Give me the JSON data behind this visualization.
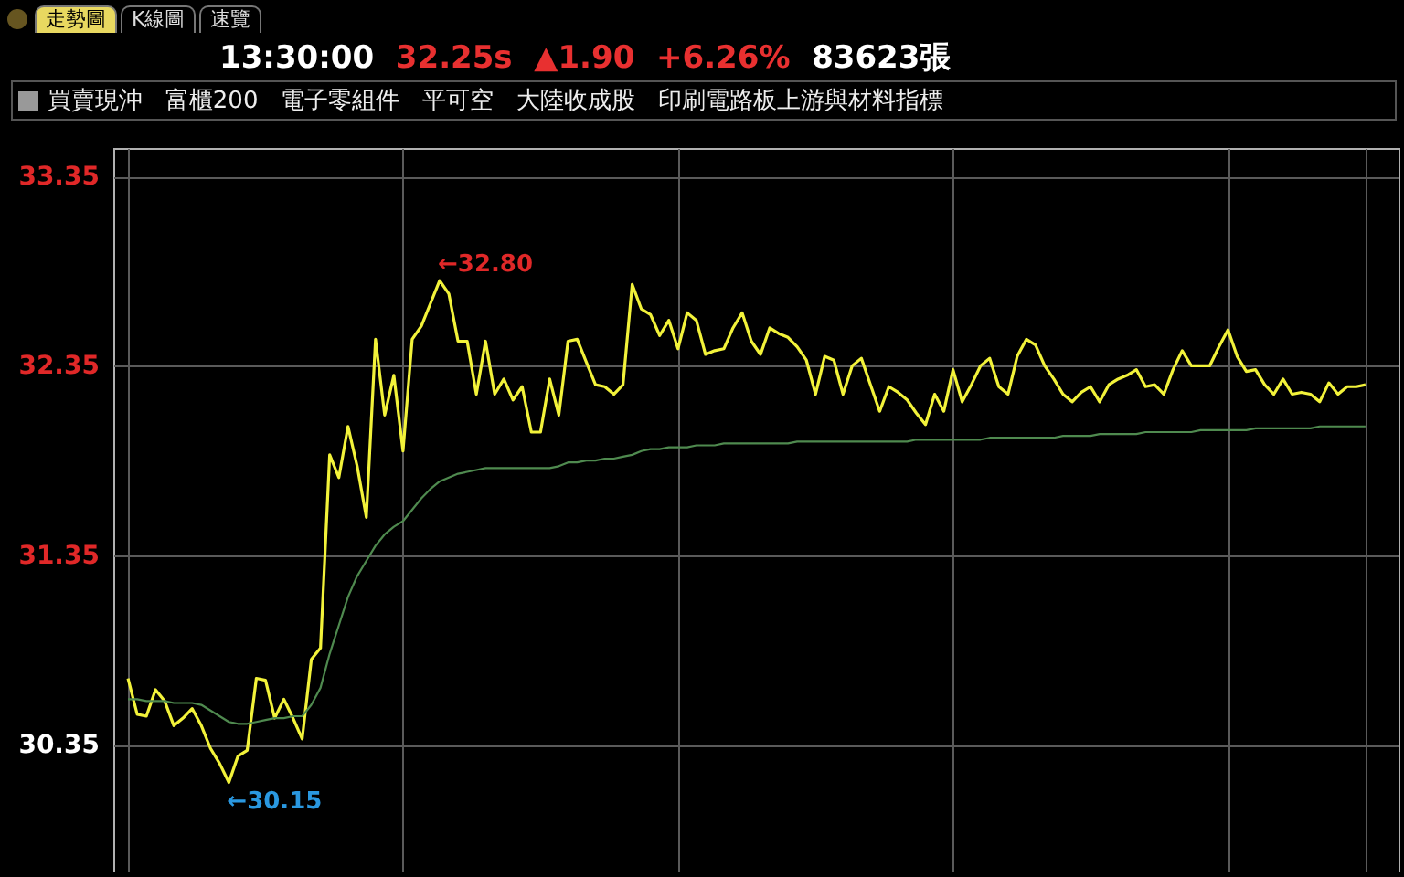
{
  "chart_data": {
    "type": "line",
    "title": "13:30:00 32.25s ▲1.90 +6.26% 83623張",
    "subtitle": "買賣現沖   富櫃200   電子零組件   平可空   大陸收成股   印刷電路板上游與材料指標",
    "annotations": [
      "走勢圖",
      "K線圖",
      "速覽",
      "←32.80",
      "←30.15"
    ],
    "categories": [
      null,
      null,
      null,
      null,
      null,
      null,
      null,
      null,
      null,
      null,
      null,
      null,
      null,
      null,
      null,
      null,
      null,
      null,
      null,
      null,
      null,
      null,
      null,
      null,
      null,
      null,
      null,
      null,
      null,
      null,
      null,
      null,
      null,
      null,
      null,
      null,
      null,
      null,
      null,
      null,
      null,
      null,
      null,
      null,
      null,
      null,
      null,
      null,
      null,
      null,
      null,
      null,
      null,
      null,
      null,
      null,
      null,
      null,
      null,
      null,
      null,
      null,
      null,
      null,
      null,
      null,
      null,
      null,
      null,
      null,
      null,
      null,
      null,
      null,
      null,
      null,
      null,
      null,
      null,
      null,
      null,
      null,
      null,
      null,
      null,
      null,
      null,
      null,
      null,
      null,
      null,
      null,
      null,
      null,
      null,
      null,
      null,
      null,
      null,
      null,
      null,
      null,
      null,
      null,
      null,
      null,
      null,
      null,
      null,
      null,
      null,
      null,
      null,
      null,
      null,
      null,
      null,
      null,
      null,
      null,
      null,
      null,
      null,
      null,
      null,
      null,
      null,
      null,
      null,
      null,
      null,
      null,
      null,
      null,
      null,
      null
    ],
    "ylim": [
      29.68,
      33.5
    ],
    "yticks": [
      30.35,
      31.35,
      32.35,
      33.35
    ],
    "grid": true,
    "tick_labels": "y",
    "series": [
      {
        "color": "#f2f23a",
        "values": [
          30.7,
          30.51,
          30.5,
          30.64,
          30.58,
          30.45,
          30.49,
          30.54,
          30.45,
          30.33,
          30.25,
          30.15,
          30.29,
          30.32,
          30.7,
          30.69,
          30.49,
          30.59,
          30.49,
          30.38,
          30.8,
          30.86,
          31.88,
          31.76,
          32.03,
          31.82,
          31.55,
          32.49,
          32.09,
          32.3,
          31.9,
          32.49,
          32.56,
          32.68,
          32.8,
          32.73,
          32.48,
          32.48,
          32.2,
          32.48,
          32.2,
          32.28,
          32.17,
          32.24,
          32.0,
          32.0,
          32.28,
          32.09,
          32.48,
          32.49,
          32.37,
          32.25,
          32.24,
          32.2,
          32.25,
          32.78,
          32.65,
          32.62,
          32.51,
          32.59,
          32.44,
          32.63,
          32.59,
          32.41,
          32.43,
          32.44,
          32.55,
          32.63,
          32.48,
          32.41,
          32.55,
          32.52,
          32.5,
          32.45,
          32.38,
          32.2,
          32.4,
          32.38,
          32.2,
          32.35,
          32.39,
          32.25,
          32.11,
          32.24,
          32.21,
          32.17,
          32.1,
          32.04,
          32.2,
          32.11,
          32.33,
          32.16,
          32.25,
          32.35,
          32.39,
          32.24,
          32.2,
          32.4,
          32.49,
          32.46,
          32.35,
          32.28,
          32.2,
          32.16,
          32.21,
          32.24,
          32.16,
          32.25,
          32.28,
          32.3,
          32.33,
          32.24,
          32.25,
          32.2,
          32.33,
          32.43,
          32.35,
          32.35,
          32.35,
          32.45,
          32.54,
          32.4,
          32.32,
          32.33,
          32.25,
          32.2,
          32.28,
          32.2,
          32.21,
          32.2,
          32.16,
          32.26,
          32.2,
          32.24,
          32.24,
          32.25
        ]
      },
      {
        "color": "#4f8a4f",
        "values": [
          30.59,
          30.59,
          30.58,
          30.58,
          30.58,
          30.57,
          30.57,
          30.57,
          30.56,
          30.53,
          30.5,
          30.47,
          30.46,
          30.46,
          30.47,
          30.48,
          30.49,
          30.49,
          30.5,
          30.5,
          30.56,
          30.65,
          30.83,
          30.98,
          31.13,
          31.24,
          31.32,
          31.4,
          31.46,
          31.5,
          31.53,
          31.59,
          31.65,
          31.7,
          31.74,
          31.76,
          31.78,
          31.79,
          31.8,
          31.81,
          31.81,
          31.81,
          31.81,
          31.81,
          31.81,
          31.81,
          31.81,
          31.82,
          31.84,
          31.84,
          31.85,
          31.85,
          31.86,
          31.86,
          31.87,
          31.88,
          31.9,
          31.91,
          31.91,
          31.92,
          31.92,
          31.92,
          31.93,
          31.93,
          31.93,
          31.94,
          31.94,
          31.94,
          31.94,
          31.94,
          31.94,
          31.94,
          31.94,
          31.95,
          31.95,
          31.95,
          31.95,
          31.95,
          31.95,
          31.95,
          31.95,
          31.95,
          31.95,
          31.95,
          31.95,
          31.95,
          31.96,
          31.96,
          31.96,
          31.96,
          31.96,
          31.96,
          31.96,
          31.96,
          31.97,
          31.97,
          31.97,
          31.97,
          31.97,
          31.97,
          31.97,
          31.97,
          31.98,
          31.98,
          31.98,
          31.98,
          31.99,
          31.99,
          31.99,
          31.99,
          31.99,
          32.0,
          32.0,
          32.0,
          32.0,
          32.0,
          32.0,
          32.01,
          32.01,
          32.01,
          32.01,
          32.01,
          32.01,
          32.02,
          32.02,
          32.02,
          32.02,
          32.02,
          32.02,
          32.02,
          32.03,
          32.03,
          32.03,
          32.03,
          32.03,
          32.03
        ]
      }
    ]
  }
}
